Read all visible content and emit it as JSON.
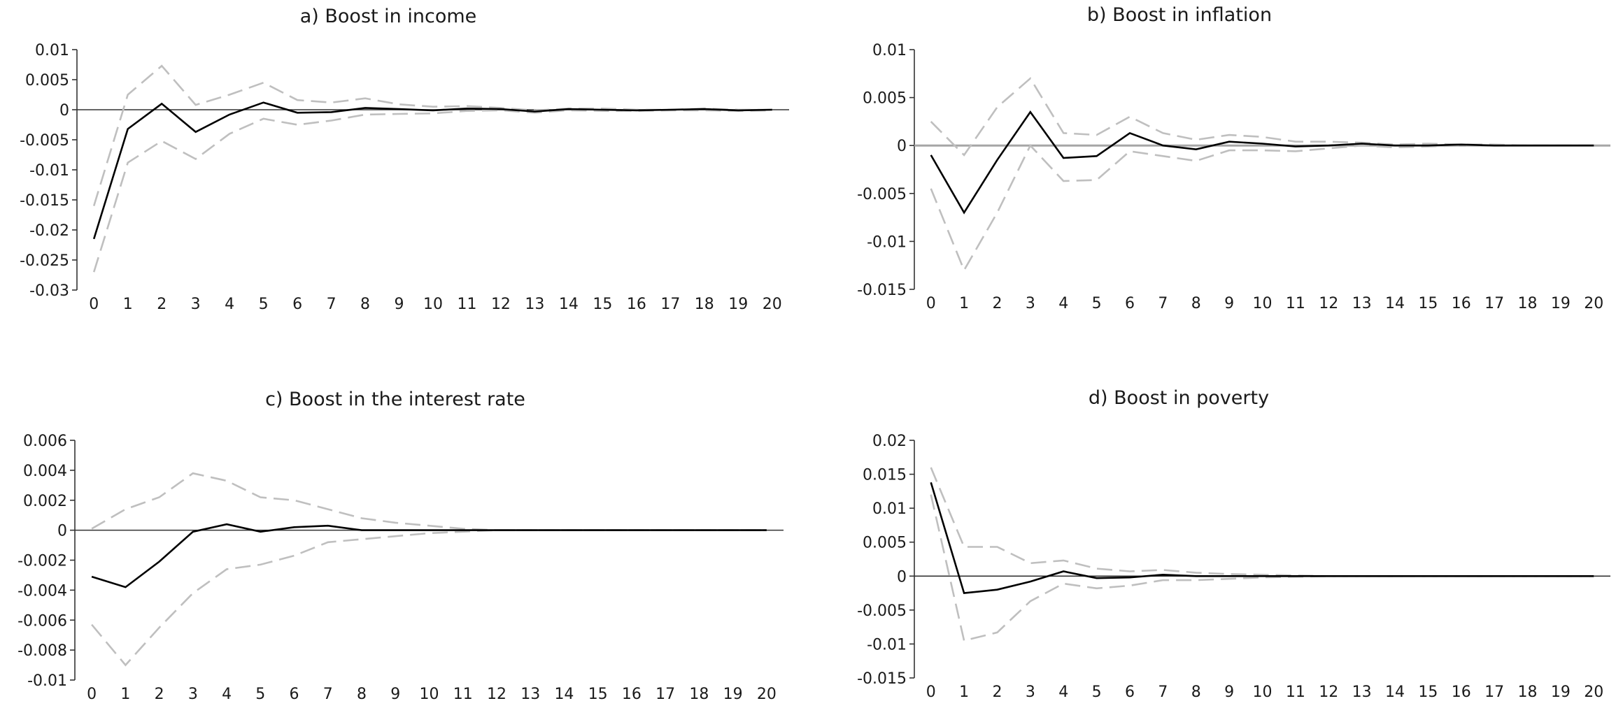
{
  "chart_data": [
    {
      "type": "line",
      "title": "a) Boost in income",
      "x": [
        0,
        1,
        2,
        3,
        4,
        5,
        6,
        7,
        8,
        9,
        10,
        11,
        12,
        13,
        14,
        15,
        16,
        17,
        18,
        19,
        20
      ],
      "x_tick_labels": [
        "0",
        "1",
        "2",
        "3",
        "4",
        "5",
        "6",
        "7",
        "8",
        "9",
        "10",
        "11",
        "12",
        "13",
        "14",
        "15",
        "16",
        "17",
        "18",
        "19",
        "20"
      ],
      "ylim": [
        -0.03,
        0.01
      ],
      "y_ticks": [
        0.01,
        0.005,
        0,
        -0.005,
        -0.01,
        -0.015,
        -0.02,
        -0.025,
        -0.03
      ],
      "y_tick_labels": [
        "0.01",
        "0.005",
        "0",
        "-0.005",
        "-0.01",
        "-0.015",
        "-0.02",
        "-0.025",
        "-0.03"
      ],
      "grid": false,
      "series": [
        {
          "role": "response",
          "color": "#000000",
          "style": "solid",
          "values": [
            -0.0215,
            -0.0032,
            0.001,
            -0.0037,
            -0.0008,
            0.0012,
            -0.0005,
            -0.0004,
            0.0003,
            0.0001,
            -0.0001,
            0.0002,
            0.0001,
            -0.0003,
            0.0001,
            0,
            -0.0001,
            0,
            0.0001,
            -0.0001,
            0
          ]
        },
        {
          "role": "upper-band",
          "color": "#bfbfbf",
          "style": "dashed",
          "values": [
            -0.016,
            0.0025,
            0.0073,
            0.0008,
            0.0025,
            0.0045,
            0.0016,
            0.0012,
            0.0019,
            0.0009,
            0.0005,
            0.0006,
            0.0003,
            -0.0001,
            0.0002,
            0.0002,
            0,
            0,
            0.0002,
            0,
            0
          ]
        },
        {
          "role": "lower-band",
          "color": "#bfbfbf",
          "style": "dashed",
          "values": [
            -0.027,
            -0.0088,
            -0.0052,
            -0.0082,
            -0.004,
            -0.0015,
            -0.0025,
            -0.0018,
            -0.0008,
            -0.0007,
            -0.0006,
            -0.0002,
            -0.0001,
            -0.0005,
            -0.0001,
            -0.0002,
            -0.0002,
            -0.0001,
            -0.0001,
            -0.0002,
            -0.0001
          ]
        }
      ]
    },
    {
      "type": "line",
      "title": "b) Boost in inflation",
      "x": [
        0,
        1,
        2,
        3,
        4,
        5,
        6,
        7,
        8,
        9,
        10,
        11,
        12,
        13,
        14,
        15,
        16,
        17,
        18,
        19,
        20
      ],
      "x_tick_labels": [
        "0",
        "1",
        "2",
        "3",
        "4",
        "5",
        "6",
        "7",
        "8",
        "9",
        "10",
        "11",
        "12",
        "13",
        "14",
        "15",
        "16",
        "17",
        "18",
        "19",
        "20"
      ],
      "ylim": [
        -0.015,
        0.01
      ],
      "y_ticks": [
        0.01,
        0.005,
        0,
        -0.005,
        -0.01,
        -0.015
      ],
      "y_tick_labels": [
        "0.01",
        "0.005",
        "0",
        "-0.005",
        "-0.01",
        "-0.015"
      ],
      "grid": false,
      "series": [
        {
          "role": "response",
          "color": "#000000",
          "style": "solid",
          "values": [
            -0.001,
            -0.007,
            -0.0015,
            0.0035,
            -0.0013,
            -0.0011,
            0.0013,
            0,
            -0.0004,
            0.0004,
            0.0002,
            -0.0001,
            0,
            0.0002,
            0,
            0,
            0.0001,
            0,
            0,
            0,
            0
          ]
        },
        {
          "role": "upper-band",
          "color": "#bfbfbf",
          "style": "dashed",
          "values": [
            0.0025,
            -0.001,
            0.004,
            0.007,
            0.0013,
            0.0011,
            0.003,
            0.0013,
            0.0006,
            0.0011,
            0.0009,
            0.0004,
            0.0004,
            0.0003,
            0.0001,
            0.0002,
            0.0001,
            0.0001,
            0,
            0,
            0
          ]
        },
        {
          "role": "lower-band",
          "color": "#bfbfbf",
          "style": "dashed",
          "values": [
            -0.0045,
            -0.013,
            -0.007,
            0,
            -0.0037,
            -0.0036,
            -0.0006,
            -0.0011,
            -0.0016,
            -0.0005,
            -0.0005,
            -0.0006,
            -0.0003,
            0,
            -0.0002,
            -0.0001,
            0,
            0,
            0,
            0,
            0
          ]
        }
      ]
    },
    {
      "type": "line",
      "title": "c) Boost in the interest rate",
      "x": [
        0,
        1,
        2,
        3,
        4,
        5,
        6,
        7,
        8,
        9,
        10,
        11,
        12,
        13,
        14,
        15,
        16,
        17,
        18,
        19,
        20
      ],
      "x_tick_labels": [
        "0",
        "1",
        "2",
        "3",
        "4",
        "5",
        "6",
        "7",
        "8",
        "9",
        "10",
        "11",
        "12",
        "13",
        "14",
        "15",
        "16",
        "17",
        "18",
        "19",
        "20"
      ],
      "ylim": [
        -0.01,
        0.006
      ],
      "y_ticks": [
        0.006,
        0.004,
        0.002,
        0,
        -0.002,
        -0.004,
        -0.006,
        -0.008,
        -0.01
      ],
      "y_tick_labels": [
        "0.006",
        "0.004",
        "0.002",
        "0",
        "-0.002",
        "-0.004",
        "-0.006",
        "-0.008",
        "-0.01"
      ],
      "grid": false,
      "series": [
        {
          "role": "response",
          "color": "#000000",
          "style": "solid",
          "values": [
            -0.0031,
            -0.0038,
            -0.0021,
            -0.0001,
            0.0004,
            -0.0001,
            0.0002,
            0.0003,
            0,
            0,
            0,
            0,
            0,
            0,
            0,
            0,
            0,
            0,
            0,
            0,
            0
          ]
        },
        {
          "role": "upper-band",
          "color": "#bfbfbf",
          "style": "dashed",
          "values": [
            0.0001,
            0.0014,
            0.0022,
            0.0038,
            0.0033,
            0.0022,
            0.002,
            0.0014,
            0.0008,
            0.0005,
            0.0003,
            0.0001,
            0,
            0,
            0,
            0,
            0,
            0,
            0,
            0,
            0
          ]
        },
        {
          "role": "lower-band",
          "color": "#bfbfbf",
          "style": "dashed",
          "values": [
            -0.0063,
            -0.009,
            -0.0065,
            -0.0042,
            -0.0026,
            -0.0023,
            -0.0017,
            -0.0008,
            -0.0006,
            -0.0004,
            -0.0002,
            -0.0001,
            0,
            0,
            0,
            0,
            0,
            0,
            0,
            0,
            0
          ]
        }
      ]
    },
    {
      "type": "line",
      "title": "d) Boost in poverty",
      "x": [
        0,
        1,
        2,
        3,
        4,
        5,
        6,
        7,
        8,
        9,
        10,
        11,
        12,
        13,
        14,
        15,
        16,
        17,
        18,
        19,
        20
      ],
      "x_tick_labels": [
        "0",
        "1",
        "2",
        "3",
        "4",
        "5",
        "6",
        "7",
        "8",
        "9",
        "10",
        "11",
        "12",
        "13",
        "14",
        "15",
        "16",
        "17",
        "18",
        "19",
        "20"
      ],
      "ylim": [
        -0.015,
        0.02
      ],
      "y_ticks": [
        0.02,
        0.015,
        0.01,
        0.005,
        0,
        -0.005,
        -0.01,
        -0.015
      ],
      "y_tick_labels": [
        "0.02",
        "0.015",
        "0.01",
        "0.005",
        "0",
        "-0.005",
        "-0.01",
        "-0.015"
      ],
      "grid": false,
      "series": [
        {
          "role": "response",
          "color": "#000000",
          "style": "solid",
          "values": [
            0.0138,
            -0.0025,
            -0.002,
            -0.0008,
            0.0007,
            -0.0003,
            -0.0002,
            0.0002,
            0,
            0,
            0,
            0,
            0,
            0,
            0,
            0,
            0,
            0,
            0,
            0,
            0
          ]
        },
        {
          "role": "upper-band",
          "color": "#bfbfbf",
          "style": "dashed",
          "values": [
            0.016,
            0.0043,
            0.0043,
            0.0019,
            0.0023,
            0.0011,
            0.0007,
            0.0009,
            0.0005,
            0.0003,
            0.0002,
            0.0001,
            0,
            0,
            0,
            0,
            0,
            0,
            0,
            0,
            0
          ]
        },
        {
          "role": "lower-band",
          "color": "#bfbfbf",
          "style": "dashed",
          "values": [
            0.012,
            -0.0095,
            -0.0083,
            -0.0037,
            -0.0011,
            -0.0018,
            -0.0014,
            -0.0006,
            -0.0006,
            -0.0004,
            -0.0002,
            -0.0001,
            0,
            0,
            0,
            0,
            0,
            0,
            0,
            0,
            0
          ]
        }
      ]
    }
  ]
}
